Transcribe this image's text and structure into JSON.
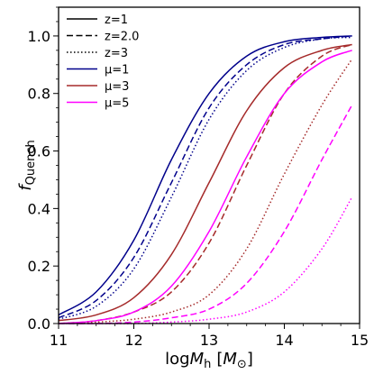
{
  "chart_data": {
    "type": "line",
    "xlabel_prefix": "log",
    "xlabel_var": "M",
    "xlabel_sub": "h",
    "xlabel_unit_open": "[",
    "xlabel_unit_var": "M",
    "xlabel_unit_sub": "⊙",
    "xlabel_unit_close": "]",
    "ylabel_main": "f",
    "ylabel_sub": "Quench",
    "xlim": [
      11,
      15
    ],
    "ylim": [
      0,
      1.1
    ],
    "xticks": [
      "11",
      "12",
      "13",
      "14",
      "15"
    ],
    "yticks": [
      "0.0",
      "0.2",
      "0.4",
      "0.6",
      "0.8",
      "1.0"
    ],
    "legend_position": "upper-left",
    "legend": [
      {
        "label": "z=1",
        "style": "solid",
        "color": "#000000"
      },
      {
        "label": "z=2.0",
        "style": "dashed",
        "color": "#000000"
      },
      {
        "label": "z=3",
        "style": "dotted",
        "color": "#000000"
      },
      {
        "label": "μ=1",
        "style": "solid",
        "color": "#00008b"
      },
      {
        "label": "μ=3",
        "style": "solid",
        "color": "#a52a2a"
      },
      {
        "label": "μ=5",
        "style": "solid",
        "color": "#ff00ff"
      }
    ],
    "series": [
      {
        "mu": 1,
        "z": 1,
        "style": "solid",
        "color": "#00008b",
        "x": [
          11.0,
          11.5,
          12.0,
          12.5,
          13.0,
          13.5,
          14.0,
          14.5,
          14.9
        ],
        "y": [
          0.03,
          0.11,
          0.29,
          0.57,
          0.8,
          0.93,
          0.98,
          0.995,
          1.0
        ]
      },
      {
        "mu": 1,
        "z": 2.0,
        "style": "dashed",
        "color": "#00008b",
        "x": [
          11.0,
          11.5,
          12.0,
          12.5,
          13.0,
          13.5,
          14.0,
          14.5,
          14.9
        ],
        "y": [
          0.02,
          0.08,
          0.23,
          0.49,
          0.75,
          0.9,
          0.97,
          0.99,
          1.0
        ]
      },
      {
        "mu": 1,
        "z": 3,
        "style": "dotted",
        "color": "#00008b",
        "x": [
          11.0,
          11.5,
          12.0,
          12.5,
          13.0,
          13.5,
          14.0,
          14.5,
          14.9
        ],
        "y": [
          0.015,
          0.06,
          0.19,
          0.44,
          0.71,
          0.88,
          0.96,
          0.99,
          0.995
        ]
      },
      {
        "mu": 3,
        "z": 1,
        "style": "solid",
        "color": "#a52a2a",
        "x": [
          11.0,
          11.5,
          12.0,
          12.5,
          13.0,
          13.5,
          14.0,
          14.5,
          14.9
        ],
        "y": [
          0.01,
          0.03,
          0.09,
          0.24,
          0.49,
          0.74,
          0.89,
          0.95,
          0.97
        ]
      },
      {
        "mu": 3,
        "z": 2.0,
        "style": "dashed",
        "color": "#a52a2a",
        "x": [
          11.0,
          11.5,
          12.0,
          12.5,
          13.0,
          13.5,
          14.0,
          14.5,
          14.9
        ],
        "y": [
          0.0,
          0.01,
          0.04,
          0.11,
          0.28,
          0.55,
          0.8,
          0.93,
          0.97
        ]
      },
      {
        "mu": 3,
        "z": 3,
        "style": "dotted",
        "color": "#a52a2a",
        "x": [
          11.0,
          11.5,
          12.0,
          12.5,
          13.0,
          13.5,
          14.0,
          14.5,
          14.9
        ],
        "y": [
          0.0,
          0.005,
          0.015,
          0.04,
          0.1,
          0.26,
          0.52,
          0.76,
          0.92
        ]
      },
      {
        "mu": 5,
        "z": 1,
        "style": "solid",
        "color": "#ff00ff",
        "x": [
          11.0,
          11.5,
          12.0,
          12.5,
          13.0,
          13.5,
          14.0,
          14.5,
          14.9
        ],
        "y": [
          0.0,
          0.01,
          0.04,
          0.13,
          0.32,
          0.58,
          0.8,
          0.91,
          0.95
        ]
      },
      {
        "mu": 5,
        "z": 2.0,
        "style": "dashed",
        "color": "#ff00ff",
        "x": [
          11.0,
          11.5,
          12.0,
          12.5,
          13.0,
          13.5,
          14.0,
          14.5,
          14.9
        ],
        "y": [
          0.0,
          0.0,
          0.005,
          0.02,
          0.05,
          0.14,
          0.32,
          0.57,
          0.76
        ]
      },
      {
        "mu": 5,
        "z": 3,
        "style": "dotted",
        "color": "#ff00ff",
        "x": [
          11.0,
          11.5,
          12.0,
          12.5,
          13.0,
          13.5,
          14.0,
          14.5,
          14.9
        ],
        "y": [
          0.0,
          0.0,
          0.0,
          0.005,
          0.015,
          0.04,
          0.11,
          0.26,
          0.44
        ]
      }
    ]
  }
}
